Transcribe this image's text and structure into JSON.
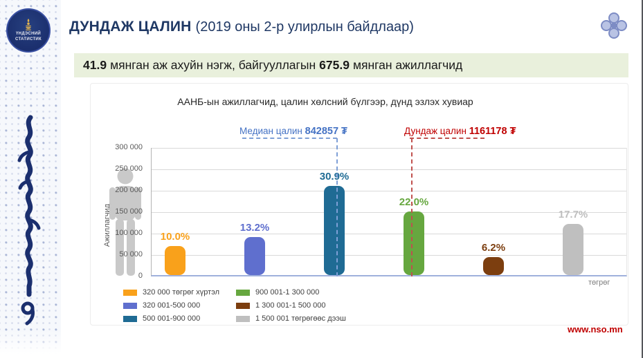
{
  "theme": {
    "title_navy": "#1F3864",
    "banner_bg": "#E9F0DC",
    "banner_text": "#1A1A1A",
    "median_line": "#7E9FD6",
    "average_line": "#C0504D",
    "website_red": "#C00000",
    "axis_gray": "#595959",
    "grid_gray": "#D9D9D9",
    "baseline_blue": "#9FB0DC",
    "sidebar_navy": "#1B2F6E"
  },
  "header": {
    "title_main": "ДУНДАЖ ЦАЛИН",
    "title_suffix": "(2019 оны 2-р улирлын байдлаар)",
    "banner": {
      "value1": "41.9",
      "text1": "мянган аж ахуйн нэгж, байгууллагын",
      "value2": "675.9",
      "text2": "мянган ажиллагчид"
    }
  },
  "sidebar": {
    "logo_line1": "ҮНДЭСНИЙ",
    "logo_line2": "СТАТИСТИК"
  },
  "footer": {
    "website": "www.nso.mn"
  },
  "chart_data": {
    "type": "bar",
    "title": "ААНБ-ын ажиллагчид, цалин хөлсний бүлгээр, дүнд эзлэх хувиар",
    "ylabel": "Ажиллагчид",
    "xlabel": "төгрөг",
    "total_workers": 675900,
    "ylim": [
      0,
      300000
    ],
    "y_ticks": [
      "300 000",
      "250 000",
      "200 000",
      "150 000",
      "100 000",
      "50 000",
      "0"
    ],
    "grid": true,
    "legend_position": "bottom",
    "categories": [
      "320 000 төгрөг хүртэл",
      "320 001-500 000",
      "500 001-900 000",
      "900 001-1 300 000",
      "1 300 001-1 500 000",
      "1 500 001 төгрөгөөс дээш"
    ],
    "values_percent": [
      10.0,
      13.2,
      30.9,
      22.0,
      6.2,
      17.7
    ],
    "labels": [
      "10.0%",
      "13.2%",
      "30.9%",
      "22.0%",
      "6.2%",
      "17.7%"
    ],
    "workers_approx": [
      67590,
      89219,
      208853,
      148698,
      41906,
      119634
    ],
    "colors": [
      "#F9A11B",
      "#5F6FCE",
      "#1F6B94",
      "#66A73F",
      "#7C3E0F",
      "#BFBFBF"
    ],
    "annotations": [
      {
        "name": "median",
        "label": "Медиан цалин",
        "value": "842857 ₮",
        "color": "#4472C4"
      },
      {
        "name": "average",
        "label": "Дундаж цалин",
        "value": "1161178 ₮",
        "color": "#C00000"
      }
    ]
  }
}
